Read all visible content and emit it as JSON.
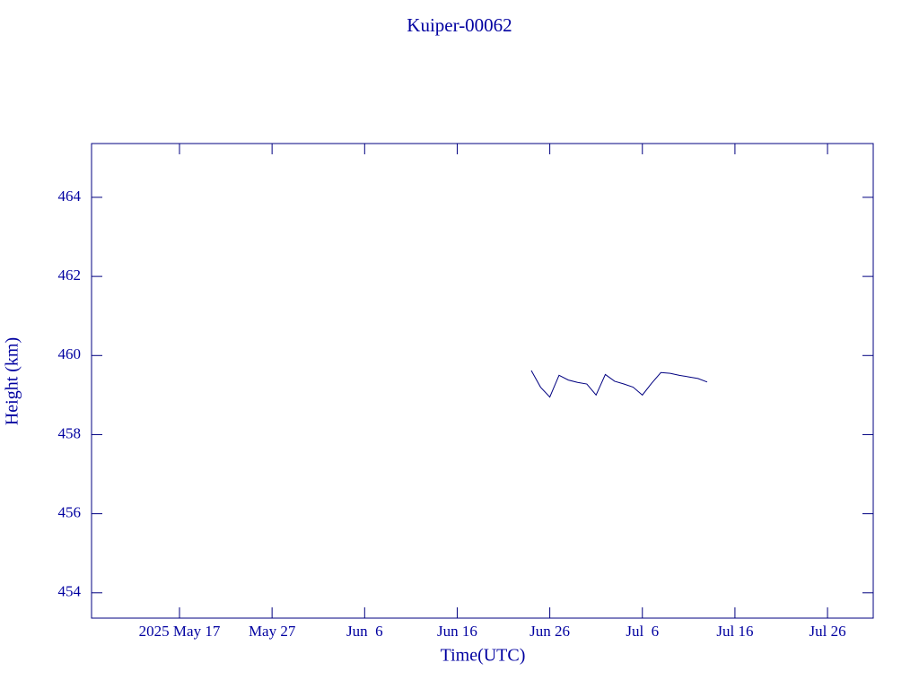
{
  "chart_data": {
    "type": "line",
    "title": "Kuiper-00062",
    "x_label": "Time(UTC)",
    "y_label": "Height (km)",
    "x": [
      "2025-06-24",
      "2025-06-25",
      "2025-06-26",
      "2025-06-27",
      "2025-06-28",
      "2025-06-29",
      "2025-06-30",
      "2025-07-01",
      "2025-07-02",
      "2025-07-03",
      "2025-07-04",
      "2025-07-05",
      "2025-07-06",
      "2025-07-07",
      "2025-07-08",
      "2025-07-09",
      "2025-07-10",
      "2025-07-11",
      "2025-07-12",
      "2025-07-13"
    ],
    "series": [
      {
        "color": "#000080",
        "values": [
          459.62,
          459.2,
          458.95,
          459.5,
          459.38,
          459.32,
          459.28,
          459.0,
          459.52,
          459.35,
          459.28,
          459.2,
          459.0,
          459.3,
          459.57,
          459.55,
          459.5,
          459.46,
          459.42,
          459.33
        ]
      }
    ],
    "xlim": [
      "2025-05-07T12:00",
      "2025-07-30T22:30"
    ],
    "xticks": [
      {
        "value": "2025-05-17",
        "label": "2025 May 17"
      },
      {
        "value": "2025-05-27",
        "label": "May 27"
      },
      {
        "value": "2025-06-06",
        "label": "Jun  6"
      },
      {
        "value": "2025-06-16",
        "label": "Jun 16"
      },
      {
        "value": "2025-06-26",
        "label": "Jun 26"
      },
      {
        "value": "2025-07-06",
        "label": "Jul  6"
      },
      {
        "value": "2025-07-16",
        "label": "Jul 16"
      },
      {
        "value": "2025-07-26",
        "label": "Jul 26"
      }
    ],
    "ylim": [
      453.36,
      465.36
    ],
    "yticks": [
      454,
      456,
      458,
      460,
      462,
      464
    ]
  }
}
